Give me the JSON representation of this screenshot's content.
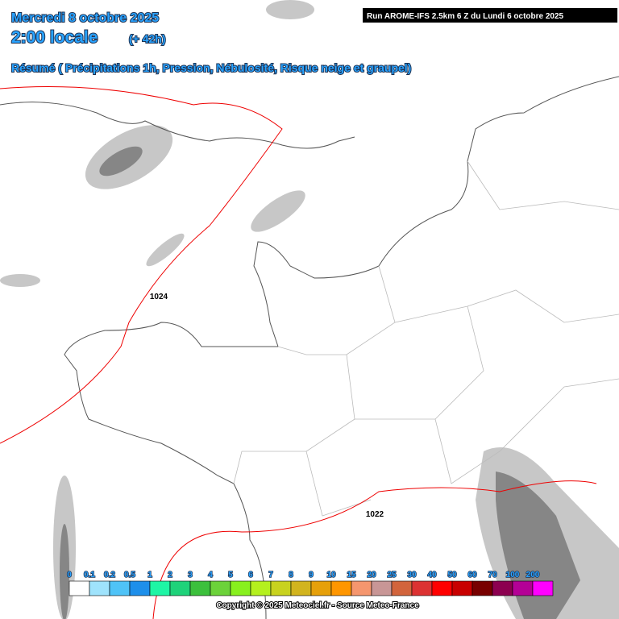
{
  "header": {
    "date": "Mercredi 8 octobre 2025",
    "time": "2:00 locale",
    "lead": "(+ 42h)",
    "product": "Résumé ( Précipitations 1h, Pression, Nébulosité, Risque neige et graupel)",
    "run": "Run AROME-IFS 2.5km 6 Z du Lundi 6 octobre 2025"
  },
  "isobars": [
    {
      "label": "1024"
    },
    {
      "label": "1022"
    }
  ],
  "legend": {
    "items": [
      {
        "label": "0",
        "color": "#ffffff"
      },
      {
        "label": "0.1",
        "color": "#9fe3fc"
      },
      {
        "label": "0.2",
        "color": "#4fc3f7"
      },
      {
        "label": "0.5",
        "color": "#1e8fea"
      },
      {
        "label": "1",
        "color": "#1ef5a5"
      },
      {
        "label": "2",
        "color": "#1ed27a"
      },
      {
        "label": "3",
        "color": "#3cc03c"
      },
      {
        "label": "4",
        "color": "#6cd23a"
      },
      {
        "label": "5",
        "color": "#88f01e"
      },
      {
        "label": "6",
        "color": "#b4f01e"
      },
      {
        "label": "7",
        "color": "#c8d21e"
      },
      {
        "label": "8",
        "color": "#d2b41e"
      },
      {
        "label": "9",
        "color": "#e6a00a"
      },
      {
        "label": "10",
        "color": "#ff9600"
      },
      {
        "label": "15",
        "color": "#f5966e"
      },
      {
        "label": "20",
        "color": "#c89696"
      },
      {
        "label": "25",
        "color": "#d2643c"
      },
      {
        "label": "30",
        "color": "#dc3232"
      },
      {
        "label": "40",
        "color": "#ff0000"
      },
      {
        "label": "50",
        "color": "#c80000"
      },
      {
        "label": "60",
        "color": "#780000"
      },
      {
        "label": "70",
        "color": "#8c0050"
      },
      {
        "label": "100",
        "color": "#b40096"
      },
      {
        "label": "200",
        "color": "#ff00ff"
      }
    ]
  },
  "footer": {
    "copyright": "Copyright © 2025 Meteociel.fr - Source Meteo-France"
  }
}
